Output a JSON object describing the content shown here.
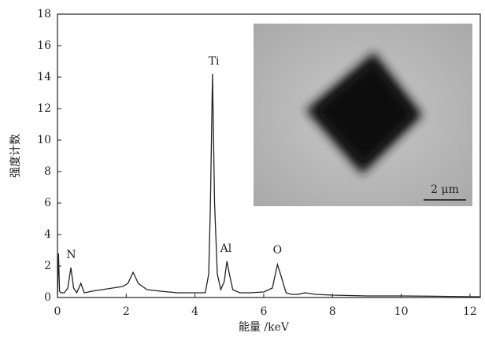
{
  "chart_data": {
    "type": "line",
    "xlabel": "能量 /keV",
    "ylabel": "强度计数",
    "x": [
      0,
      0.03,
      0.06,
      0.1,
      0.2,
      0.3,
      0.39,
      0.47,
      0.56,
      0.68,
      0.78,
      0.9,
      1.0,
      1.3,
      1.6,
      1.9,
      2.05,
      2.2,
      2.35,
      2.6,
      3.0,
      3.5,
      4.0,
      4.3,
      4.4,
      4.45,
      4.51,
      4.57,
      4.65,
      4.75,
      4.85,
      4.93,
      5.0,
      5.1,
      5.3,
      5.6,
      6.0,
      6.25,
      6.4,
      6.5,
      6.65,
      6.8,
      7.0,
      7.2,
      7.5,
      8.0,
      9.0,
      10.0,
      11.0,
      12.0,
      12.3
    ],
    "values": [
      0.2,
      2.8,
      0.4,
      0.3,
      0.3,
      0.6,
      1.9,
      0.6,
      0.3,
      0.9,
      0.3,
      0.35,
      0.4,
      0.5,
      0.6,
      0.7,
      0.9,
      1.6,
      0.9,
      0.5,
      0.4,
      0.3,
      0.3,
      0.3,
      1.5,
      6.0,
      14.2,
      6.0,
      1.5,
      0.5,
      1.0,
      2.3,
      1.5,
      0.5,
      0.3,
      0.3,
      0.35,
      0.6,
      2.1,
      1.4,
      0.3,
      0.2,
      0.2,
      0.3,
      0.2,
      0.15,
      0.1,
      0.1,
      0.08,
      0.05,
      0.05
    ],
    "color": "#222222",
    "xlim": [
      0,
      12.3
    ],
    "xticks": [
      0,
      2,
      4,
      6,
      8,
      10,
      12
    ],
    "ylim": [
      0,
      18
    ],
    "yticks": [
      0,
      2,
      4,
      6,
      8,
      10,
      12,
      14,
      16,
      18
    ],
    "annotations": [
      "N",
      "Ti",
      "Al",
      "O"
    ],
    "inset_label": "2 μm"
  }
}
